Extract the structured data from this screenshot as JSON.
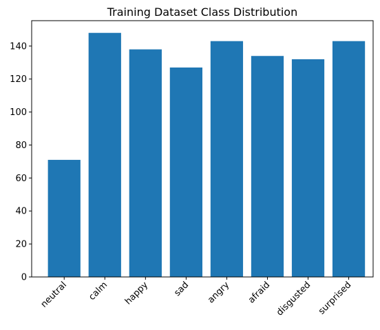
{
  "chart_data": {
    "type": "bar",
    "title": "Training Dataset Class Distribution",
    "categories": [
      "neutral",
      "calm",
      "happy",
      "sad",
      "angry",
      "afraid",
      "disgusted",
      "surprised"
    ],
    "values": [
      71,
      148,
      138,
      127,
      143,
      134,
      132,
      143
    ],
    "xlabel": "",
    "ylabel": "",
    "ylim": [
      0,
      155.4
    ],
    "yticks": [
      0,
      20,
      40,
      60,
      80,
      100,
      120,
      140
    ],
    "ytick_labels": [
      "0",
      "20",
      "40",
      "60",
      "80",
      "100",
      "120",
      "140"
    ],
    "x_tick_rotation": 45,
    "grid": false,
    "legend": "none",
    "bar_color": "#1f77b4"
  }
}
